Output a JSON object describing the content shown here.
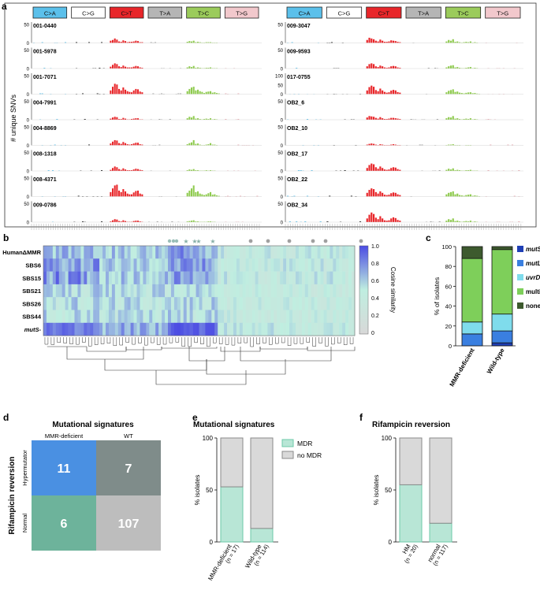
{
  "panel_labels": {
    "a": "a",
    "b": "b",
    "c": "c",
    "d": "d",
    "e": "e",
    "f": "f"
  },
  "panel_a": {
    "ylabel": "# unique SNVs",
    "mutation_types": [
      "C>A",
      "C>G",
      "C>T",
      "T>A",
      "T>C",
      "T>G"
    ],
    "type_colors": [
      "#5bc0eb",
      "#ffffff",
      "#e8262a",
      "#b5b5b5",
      "#9bcb5b",
      "#f2c8cc"
    ],
    "left_samples": [
      {
        "id": "001-0440",
        "ymax": 50,
        "ticks": [
          0,
          50
        ],
        "ct": [
          6,
          8,
          12,
          9,
          4,
          3,
          7,
          5,
          2,
          3
        ],
        "tc": [
          3,
          5,
          4,
          6,
          2,
          3,
          2,
          1
        ]
      },
      {
        "id": "001-5978",
        "ymax": 50,
        "ticks": [
          0,
          50
        ],
        "ct": [
          5,
          10,
          14,
          12,
          6,
          4,
          8,
          5,
          3,
          3
        ],
        "tc": [
          3,
          6,
          4,
          7,
          2,
          3,
          2,
          1
        ]
      },
      {
        "id": "001-7071",
        "ymax": 50,
        "ticks": [
          0,
          50
        ],
        "ct": [
          10,
          20,
          28,
          26,
          14,
          10,
          18,
          12,
          8,
          6
        ],
        "tc": [
          8,
          14,
          18,
          20,
          10,
          12,
          8,
          6
        ]
      },
      {
        "id": "004-7991",
        "ymax": 50,
        "ticks": [
          0,
          50
        ],
        "ct": [
          3,
          6,
          8,
          7,
          2,
          2,
          5,
          3,
          1,
          1
        ],
        "tc": [
          4,
          8,
          6,
          10,
          3,
          4,
          2,
          1
        ]
      },
      {
        "id": "004-8869",
        "ymax": 50,
        "ticks": [
          0,
          50
        ],
        "ct": [
          5,
          10,
          14,
          13,
          6,
          4,
          9,
          6,
          3,
          2
        ],
        "tc": [
          3,
          6,
          8,
          14,
          4,
          5,
          2,
          1
        ]
      },
      {
        "id": "008-1318",
        "ymax": 50,
        "ticks": [
          0,
          50
        ],
        "ct": [
          3,
          8,
          12,
          10,
          5,
          3,
          7,
          4,
          2,
          2
        ],
        "tc": [
          2,
          4,
          3,
          5,
          2,
          2,
          1,
          1
        ]
      },
      {
        "id": "008-4371",
        "ymax": 50,
        "ticks": [
          0,
          50
        ],
        "ct": [
          12,
          22,
          30,
          32,
          16,
          12,
          20,
          14,
          8,
          6
        ],
        "tc": [
          10,
          16,
          22,
          30,
          12,
          14,
          8,
          6
        ]
      },
      {
        "id": "009-0786",
        "ymax": 50,
        "ticks": [
          0,
          50
        ],
        "ct": [
          2,
          5,
          8,
          7,
          3,
          2,
          5,
          3,
          1,
          1
        ],
        "tc": [
          2,
          3,
          4,
          5,
          2,
          2,
          1,
          1
        ]
      }
    ],
    "right_samples": [
      {
        "id": "009-3047",
        "ymax": 50,
        "ticks": [
          0,
          50
        ],
        "ct": [
          8,
          14,
          12,
          10,
          6,
          4,
          9,
          6,
          3,
          3
        ],
        "tc": [
          4,
          8,
          6,
          10,
          3,
          4,
          2,
          1
        ]
      },
      {
        "id": "009-9593",
        "ymax": 50,
        "ticks": [
          0,
          50
        ],
        "ct": [
          6,
          12,
          14,
          12,
          6,
          4,
          8,
          6,
          3,
          2
        ],
        "tc": [
          3,
          6,
          8,
          9,
          3,
          4,
          2,
          1
        ]
      },
      {
        "id": "017-0755",
        "ymax": 100,
        "ticks": [
          0,
          50,
          100
        ],
        "ct": [
          20,
          38,
          46,
          40,
          22,
          16,
          30,
          20,
          12,
          8
        ],
        "tc": [
          10,
          18,
          22,
          26,
          12,
          14,
          8,
          6
        ]
      },
      {
        "id": "OB2_6",
        "ymax": 50,
        "ticks": [
          0,
          50
        ],
        "ct": [
          6,
          10,
          9,
          8,
          5,
          3,
          7,
          4,
          2,
          2
        ],
        "tc": [
          4,
          7,
          6,
          10,
          3,
          4,
          2,
          1
        ]
      },
      {
        "id": "OB2_10",
        "ymax": 50,
        "ticks": [
          0,
          50
        ],
        "ct": [
          2,
          4,
          5,
          4,
          2,
          1,
          3,
          2,
          1,
          1
        ],
        "tc": [
          1,
          2,
          2,
          3,
          1,
          1,
          1,
          0
        ]
      },
      {
        "id": "OB2_17",
        "ymax": 50,
        "ticks": [
          0,
          50
        ],
        "ct": [
          8,
          16,
          20,
          18,
          10,
          6,
          12,
          8,
          4,
          3
        ],
        "tc": [
          3,
          6,
          4,
          7,
          2,
          3,
          2,
          1
        ]
      },
      {
        "id": "OB2_22",
        "ymax": 50,
        "ticks": [
          0,
          50
        ],
        "ct": [
          10,
          18,
          22,
          20,
          12,
          8,
          14,
          10,
          5,
          4
        ],
        "tc": [
          6,
          10,
          12,
          14,
          6,
          8,
          4,
          3
        ]
      },
      {
        "id": "OB2_34",
        "ymax": 50,
        "ticks": [
          0,
          50
        ],
        "ct": [
          10,
          20,
          26,
          22,
          12,
          8,
          16,
          10,
          5,
          4
        ],
        "tc": [
          4,
          8,
          6,
          10,
          3,
          4,
          2,
          1
        ]
      }
    ]
  },
  "panel_b": {
    "row_labels": [
      "HumanΔMMR",
      "SBS6",
      "SBS15",
      "SBS21",
      "SBS26",
      "SBS44",
      "mutS-"
    ],
    "colorbar_label": "Cosine similarity",
    "colorbar_ticks": [
      "1.0",
      "0.8",
      "0.6",
      "0.4",
      "0.2",
      "0"
    ],
    "n_columns": 100,
    "cmap": [
      "#d8d8d8",
      "#bfeee0",
      "#4b4be3"
    ]
  },
  "chart_data": [
    {
      "panel": "c",
      "type": "bar",
      "stacked": true,
      "ylabel": "% of isolates",
      "ylim": [
        0,
        100
      ],
      "yticks": [
        "0",
        "20",
        "40",
        "60",
        "80",
        "100"
      ],
      "categories": [
        "MMR-deficient",
        "Wild-type"
      ],
      "series": [
        {
          "name": "mutS",
          "color": "#1f3fb5",
          "values": [
            0,
            3
          ]
        },
        {
          "name": "mutL",
          "color": "#3a7fe0",
          "values": [
            12,
            12
          ]
        },
        {
          "name": "uvrD",
          "color": "#7fdcec",
          "values": [
            12,
            17
          ]
        },
        {
          "name": "multiple",
          "color": "#7ecf5a",
          "values": [
            64,
            65
          ]
        },
        {
          "name": "none",
          "color": "#3d5a2e",
          "values": [
            12,
            3
          ]
        }
      ]
    },
    {
      "panel": "d",
      "type": "table",
      "title": "Mutational signatures",
      "row_axis_label": "Rifampicin reversion",
      "columns": [
        "MMR-deficient",
        "WT"
      ],
      "rows": [
        "Hypermutator",
        "Normal"
      ],
      "values": [
        [
          "11",
          "7"
        ],
        [
          "6",
          "107"
        ]
      ],
      "cell_colors": [
        [
          "#4a90e2",
          "#7f8c8a"
        ],
        [
          "#6db39b",
          "#bdbdbd"
        ]
      ]
    },
    {
      "panel": "e",
      "type": "bar",
      "stacked": true,
      "title": "Mutational signatures",
      "ylabel": "% isolates",
      "ylim": [
        0,
        100
      ],
      "yticks": [
        "0",
        "50",
        "100"
      ],
      "categories": [
        "MMR-deficient",
        "Wild-type"
      ],
      "category_n": [
        "(n = 17)",
        "(n = 114)"
      ],
      "legend_position": "right",
      "series": [
        {
          "name": "MDR",
          "color": "#b8e6d6",
          "edge": "#6ec9a8",
          "values": [
            53,
            13
          ]
        },
        {
          "name": "no MDR",
          "color": "#d9d9d9",
          "edge": "#8a8a8a",
          "values": [
            47,
            87
          ]
        }
      ]
    },
    {
      "panel": "f",
      "type": "bar",
      "stacked": true,
      "title": "Rifampicin reversion",
      "ylabel": "% isolates",
      "ylim": [
        0,
        100
      ],
      "yticks": [
        "0",
        "50",
        "100"
      ],
      "categories": [
        "HM",
        "normal"
      ],
      "category_n": [
        "(n = 20)",
        "(n = 117)"
      ],
      "series": [
        {
          "name": "MDR",
          "color": "#b8e6d6",
          "edge": "#6ec9a8",
          "values": [
            55,
            18
          ]
        },
        {
          "name": "no MDR",
          "color": "#d9d9d9",
          "edge": "#8a8a8a",
          "values": [
            45,
            82
          ]
        }
      ]
    }
  ]
}
